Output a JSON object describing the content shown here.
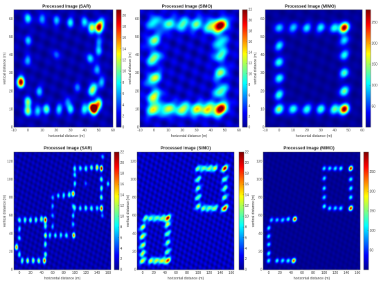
{
  "colormap": "jet",
  "chart_data": [
    {
      "type": "heatmap",
      "title": "Processed Image (SAR)",
      "xlabel": "horizontal distance (m)",
      "ylabel": "vertical distance (m)",
      "xlim": [
        -10,
        60
      ],
      "ylim": [
        0,
        65
      ],
      "xticks": [
        -10,
        0,
        10,
        20,
        30,
        40,
        50,
        60
      ],
      "yticks": [
        0,
        10,
        20,
        30,
        40,
        50,
        60
      ],
      "colorbar": {
        "range": [
          0,
          21
        ],
        "ticks": [
          0,
          2,
          4,
          6,
          8,
          10,
          12,
          14,
          16,
          18,
          20
        ]
      },
      "peak": 21,
      "background": 1.5,
      "blob": {
        "rx": 1.7,
        "ry": 2.0,
        "angle": 0
      },
      "points": [
        [
          0,
          60,
          8
        ],
        [
          10,
          60,
          6
        ],
        [
          20,
          59,
          6
        ],
        [
          30,
          58,
          7
        ],
        [
          40,
          58,
          7
        ],
        [
          45,
          55,
          12
        ],
        [
          50,
          55,
          20
        ],
        [
          52,
          58,
          8
        ],
        [
          0,
          48,
          6
        ],
        [
          0,
          37,
          6
        ],
        [
          -5,
          25,
          21
        ],
        [
          0,
          14,
          10
        ],
        [
          0,
          9,
          11
        ],
        [
          7,
          9,
          7
        ],
        [
          13,
          10,
          9
        ],
        [
          22,
          10,
          7
        ],
        [
          30,
          10,
          7
        ],
        [
          40,
          10,
          8
        ],
        [
          45,
          11,
          14
        ],
        [
          47,
          10,
          21
        ],
        [
          50,
          13,
          14
        ],
        [
          47,
          22,
          7
        ],
        [
          49,
          32,
          6
        ],
        [
          50,
          42,
          6
        ],
        [
          44,
          38,
          7
        ],
        [
          45,
          20,
          9
        ],
        [
          50,
          47,
          5
        ],
        [
          8,
          20,
          6
        ],
        [
          28,
          14,
          5
        ],
        [
          35,
          22,
          4
        ],
        [
          20,
          40,
          4
        ],
        [
          52,
          25,
          6
        ]
      ]
    },
    {
      "type": "heatmap",
      "title": "Processed Image (SIMO)",
      "xlabel": "horizontal distance (m)",
      "ylabel": "vertical distance (m)",
      "xlim": [
        -10,
        60
      ],
      "ylim": [
        0,
        65
      ],
      "xticks": [
        -10,
        0,
        10,
        20,
        30,
        40,
        50,
        60
      ],
      "yticks": [
        0,
        10,
        20,
        30,
        40,
        50,
        60
      ],
      "colorbar": {
        "range": [
          0,
          22
        ],
        "ticks": [
          0,
          2,
          4,
          6,
          8,
          10,
          12,
          14,
          16,
          18,
          20,
          22
        ]
      },
      "peak": 22,
      "background": 2.5,
      "blob": {
        "rx": 3.6,
        "ry": 2.2,
        "angle": -28
      },
      "points": [
        [
          0,
          58,
          8
        ],
        [
          10,
          57,
          9
        ],
        [
          20,
          57,
          9
        ],
        [
          30,
          57,
          9
        ],
        [
          40,
          56,
          10
        ],
        [
          47,
          56,
          22
        ],
        [
          0,
          48,
          10
        ],
        [
          0,
          38,
          11
        ],
        [
          0,
          27,
          12
        ],
        [
          0,
          17,
          12
        ],
        [
          0,
          10,
          13
        ],
        [
          10,
          10,
          12
        ],
        [
          20,
          10,
          12
        ],
        [
          30,
          10,
          12
        ],
        [
          38,
          10,
          13
        ],
        [
          47,
          10,
          22
        ],
        [
          47,
          20,
          10
        ],
        [
          47,
          30,
          10
        ],
        [
          47,
          40,
          9
        ],
        [
          47,
          47,
          8
        ]
      ]
    },
    {
      "type": "heatmap",
      "title": "Processed Image (MIMO)",
      "xlabel": "horizontal distance (m)",
      "ylabel": "vertical distance (m)",
      "xlim": [
        -10,
        60
      ],
      "ylim": [
        0,
        65
      ],
      "xticks": [
        -10,
        0,
        10,
        20,
        30,
        40,
        50,
        60
      ],
      "yticks": [
        0,
        10,
        20,
        30,
        40,
        50,
        60
      ],
      "colorbar": {
        "range": [
          0,
          280
        ],
        "ticks": [
          50,
          100,
          150,
          200,
          250
        ]
      },
      "peak": 280,
      "background": 12,
      "blob": {
        "rx": 2.4,
        "ry": 1.8,
        "angle": -25
      },
      "points": [
        [
          0,
          55,
          90
        ],
        [
          10,
          55,
          90
        ],
        [
          20,
          55,
          95
        ],
        [
          30,
          55,
          100
        ],
        [
          40,
          55,
          110
        ],
        [
          47,
          55,
          280
        ],
        [
          0,
          45,
          100
        ],
        [
          0,
          36,
          110
        ],
        [
          0,
          27,
          110
        ],
        [
          0,
          18,
          115
        ],
        [
          0,
          10,
          150
        ],
        [
          10,
          10,
          115
        ],
        [
          20,
          10,
          115
        ],
        [
          30,
          10,
          115
        ],
        [
          40,
          10,
          130
        ],
        [
          47,
          10,
          280
        ],
        [
          47,
          20,
          140
        ],
        [
          47,
          30,
          120
        ],
        [
          47,
          40,
          110
        ],
        [
          47,
          48,
          100
        ]
      ]
    },
    {
      "type": "heatmap",
      "title": "Processed Image (SAR)",
      "xlabel": "horizontal distance (m)",
      "ylabel": "vertical distance (m)",
      "xlim": [
        -10,
        165
      ],
      "ylim": [
        0,
        130
      ],
      "xticks": [
        0,
        20,
        40,
        60,
        80,
        100,
        120,
        140,
        160
      ],
      "yticks": [
        0,
        20,
        40,
        60,
        80,
        100,
        120
      ],
      "colorbar": {
        "range": [
          0,
          22
        ],
        "ticks": [
          0,
          2,
          4,
          6,
          8,
          10,
          12,
          14,
          16,
          18,
          20,
          22
        ]
      },
      "peak": 22,
      "background": 1.8,
      "blob": {
        "rx": 1.9,
        "ry": 2.2,
        "angle": 0
      },
      "points": [
        [
          0,
          55,
          10
        ],
        [
          10,
          55,
          10
        ],
        [
          20,
          55,
          10
        ],
        [
          30,
          55,
          10
        ],
        [
          40,
          56,
          12
        ],
        [
          47,
          55,
          20
        ],
        [
          0,
          45,
          8
        ],
        [
          0,
          35,
          8
        ],
        [
          -5,
          25,
          16
        ],
        [
          0,
          17,
          9
        ],
        [
          5,
          10,
          10
        ],
        [
          15,
          10,
          12
        ],
        [
          25,
          10,
          12
        ],
        [
          35,
          10,
          12
        ],
        [
          45,
          10,
          18
        ],
        [
          47,
          17,
          10
        ],
        [
          47,
          28,
          10
        ],
        [
          47,
          38,
          12
        ],
        [
          47,
          48,
          10
        ],
        [
          55,
          38,
          8
        ],
        [
          65,
          38,
          8
        ],
        [
          75,
          38,
          8
        ],
        [
          85,
          38,
          9
        ],
        [
          98,
          38,
          16
        ],
        [
          60,
          48,
          6
        ],
        [
          60,
          60,
          6
        ],
        [
          60,
          70,
          6
        ],
        [
          60,
          80,
          6
        ],
        [
          70,
          82,
          7
        ],
        [
          80,
          82,
          8
        ],
        [
          90,
          83,
          10
        ],
        [
          97,
          84,
          16
        ],
        [
          97,
          70,
          7
        ],
        [
          97,
          60,
          7
        ],
        [
          97,
          50,
          7
        ],
        [
          100,
          95,
          8
        ],
        [
          100,
          105,
          8
        ],
        [
          100,
          112,
          9
        ],
        [
          110,
          112,
          9
        ],
        [
          120,
          112,
          10
        ],
        [
          130,
          113,
          10
        ],
        [
          140,
          113,
          14
        ],
        [
          148,
          112,
          20
        ],
        [
          148,
          100,
          10
        ],
        [
          148,
          90,
          10
        ],
        [
          148,
          80,
          10
        ],
        [
          148,
          68,
          18
        ],
        [
          140,
          68,
          8
        ],
        [
          130,
          68,
          10
        ],
        [
          120,
          68,
          10
        ],
        [
          110,
          68,
          8
        ],
        [
          100,
          68,
          7
        ],
        [
          150,
          125,
          6
        ],
        [
          160,
          95,
          7
        ],
        [
          150,
          60,
          5
        ],
        [
          120,
          95,
          4
        ]
      ]
    },
    {
      "type": "heatmap",
      "title": "Processed Image (SIMO)",
      "xlabel": "horizontal distance (m)",
      "ylabel": "vertical distance (m)",
      "xlim": [
        -10,
        165
      ],
      "ylim": [
        0,
        130
      ],
      "xticks": [
        0,
        20,
        40,
        60,
        80,
        100,
        120,
        140,
        160
      ],
      "yticks": [
        0,
        20,
        40,
        60,
        80,
        100,
        120
      ],
      "colorbar": {
        "range": [
          0,
          22
        ],
        "ticks": [
          0,
          2,
          4,
          6,
          8,
          10,
          12,
          14,
          16,
          18,
          20,
          22
        ]
      },
      "peak": 22,
      "background": 2.5,
      "blob": {
        "rx": 4.2,
        "ry": 2.0,
        "angle": -25
      },
      "points": [
        [
          5,
          57,
          10
        ],
        [
          15,
          57,
          10
        ],
        [
          25,
          57,
          10
        ],
        [
          35,
          57,
          11
        ],
        [
          45,
          57,
          20
        ],
        [
          0,
          47,
          12
        ],
        [
          0,
          37,
          13
        ],
        [
          0,
          27,
          12
        ],
        [
          0,
          18,
          12
        ],
        [
          0,
          10,
          13
        ],
        [
          15,
          10,
          12
        ],
        [
          25,
          10,
          12
        ],
        [
          35,
          10,
          13
        ],
        [
          45,
          10,
          18
        ],
        [
          45,
          20,
          10
        ],
        [
          45,
          30,
          10
        ],
        [
          45,
          40,
          10
        ],
        [
          45,
          50,
          12
        ],
        [
          100,
          112,
          10
        ],
        [
          110,
          112,
          10
        ],
        [
          120,
          112,
          11
        ],
        [
          130,
          112,
          12
        ],
        [
          148,
          112,
          20
        ],
        [
          100,
          100,
          10
        ],
        [
          100,
          90,
          10
        ],
        [
          100,
          80,
          10
        ],
        [
          100,
          70,
          11
        ],
        [
          110,
          68,
          10
        ],
        [
          120,
          68,
          10
        ],
        [
          130,
          68,
          11
        ],
        [
          148,
          68,
          20
        ],
        [
          148,
          80,
          10
        ],
        [
          148,
          90,
          10
        ],
        [
          148,
          100,
          10
        ]
      ]
    },
    {
      "type": "heatmap",
      "title": "Processed Image (MIMO)",
      "xlabel": "horizontal distance (m)",
      "ylabel": "vertical distance (m)",
      "xlim": [
        -10,
        165
      ],
      "ylim": [
        0,
        130
      ],
      "xticks": [
        0,
        20,
        40,
        60,
        80,
        100,
        120,
        140,
        160
      ],
      "yticks": [
        0,
        20,
        40,
        60,
        80,
        100,
        120
      ],
      "colorbar": {
        "range": [
          0,
          300
        ],
        "ticks": [
          50,
          100,
          150,
          200,
          250
        ]
      },
      "peak": 300,
      "background": 10,
      "blob": {
        "rx": 2.6,
        "ry": 1.8,
        "angle": -20
      },
      "points": [
        [
          5,
          55,
          100
        ],
        [
          15,
          55,
          100
        ],
        [
          25,
          55,
          110
        ],
        [
          35,
          56,
          120
        ],
        [
          47,
          56,
          270
        ],
        [
          0,
          46,
          110
        ],
        [
          0,
          37,
          110
        ],
        [
          0,
          28,
          110
        ],
        [
          0,
          18,
          120
        ],
        [
          0,
          10,
          120
        ],
        [
          15,
          10,
          115
        ],
        [
          25,
          10,
          115
        ],
        [
          35,
          10,
          120
        ],
        [
          45,
          10,
          250
        ],
        [
          100,
          112,
          110
        ],
        [
          110,
          112,
          110
        ],
        [
          120,
          112,
          115
        ],
        [
          130,
          112,
          120
        ],
        [
          148,
          112,
          280
        ],
        [
          100,
          101,
          110
        ],
        [
          100,
          90,
          110
        ],
        [
          100,
          80,
          110
        ],
        [
          100,
          70,
          120
        ],
        [
          110,
          68,
          110
        ],
        [
          120,
          68,
          110
        ],
        [
          130,
          68,
          115
        ],
        [
          148,
          68,
          280
        ],
        [
          148,
          80,
          120
        ],
        [
          148,
          90,
          120
        ],
        [
          148,
          100,
          120
        ]
      ]
    }
  ]
}
